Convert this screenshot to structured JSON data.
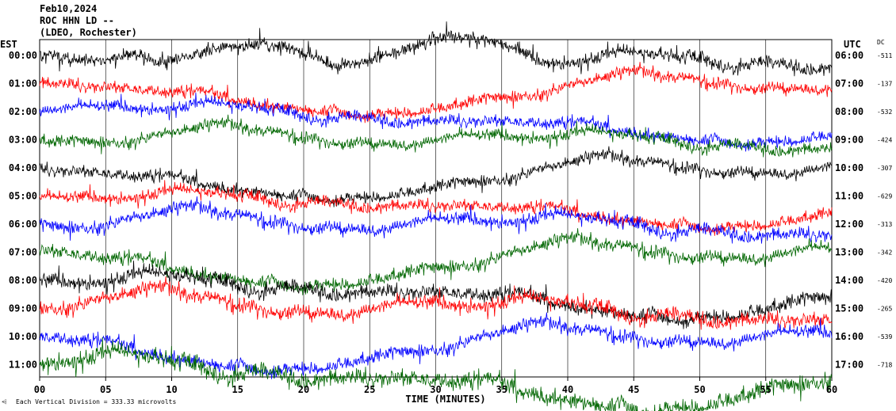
{
  "header": {
    "date": "Feb10,2024",
    "station": "ROC HHN LD --",
    "location": "(LDEO, Rochester)"
  },
  "left_axis_label": "EST",
  "right_axis_label": "UTC",
  "dc_label": "DC",
  "x_axis_title": "TIME (MINUTES)",
  "scale_note": "Each Vertical Division =  333.33 microvolts",
  "colors": {
    "black": "#000000",
    "red": "#ff0000",
    "blue": "#0000ff",
    "green": "#006600"
  },
  "chart_data": {
    "type": "line",
    "x_ticks": [
      "00",
      "05",
      "10",
      "15",
      "20",
      "25",
      "30",
      "35",
      "40",
      "45",
      "50",
      "55",
      "60"
    ],
    "xlim": [
      0,
      60
    ],
    "rows": [
      {
        "est": "00:00",
        "utc": "06:00",
        "dc": "-511",
        "color": "black",
        "amp": 1.0
      },
      {
        "est": "01:00",
        "utc": "07:00",
        "dc": "-137",
        "color": "red",
        "amp": 0.9
      },
      {
        "est": "02:00",
        "utc": "08:00",
        "dc": "-532",
        "color": "blue",
        "amp": 0.9
      },
      {
        "est": "03:00",
        "utc": "09:00",
        "dc": "-424",
        "color": "green",
        "amp": 0.9
      },
      {
        "est": "04:00",
        "utc": "10:00",
        "dc": "-307",
        "color": "black",
        "amp": 0.9
      },
      {
        "est": "05:00",
        "utc": "11:00",
        "dc": "-629",
        "color": "red",
        "amp": 0.9
      },
      {
        "est": "06:00",
        "utc": "12:00",
        "dc": "-313",
        "color": "blue",
        "amp": 1.0
      },
      {
        "est": "07:00",
        "utc": "13:00",
        "dc": "-342",
        "color": "green",
        "amp": 1.0
      },
      {
        "est": "08:00",
        "utc": "14:00",
        "dc": "-420",
        "color": "black",
        "amp": 1.1
      },
      {
        "est": "09:00",
        "utc": "15:00",
        "dc": "-265",
        "color": "red",
        "amp": 1.1
      },
      {
        "est": "10:00",
        "utc": "16:00",
        "dc": "-539",
        "color": "blue",
        "amp": 1.0
      },
      {
        "est": "11:00",
        "utc": "17:00",
        "dc": "-718",
        "color": "green",
        "amp": 1.3
      }
    ]
  }
}
